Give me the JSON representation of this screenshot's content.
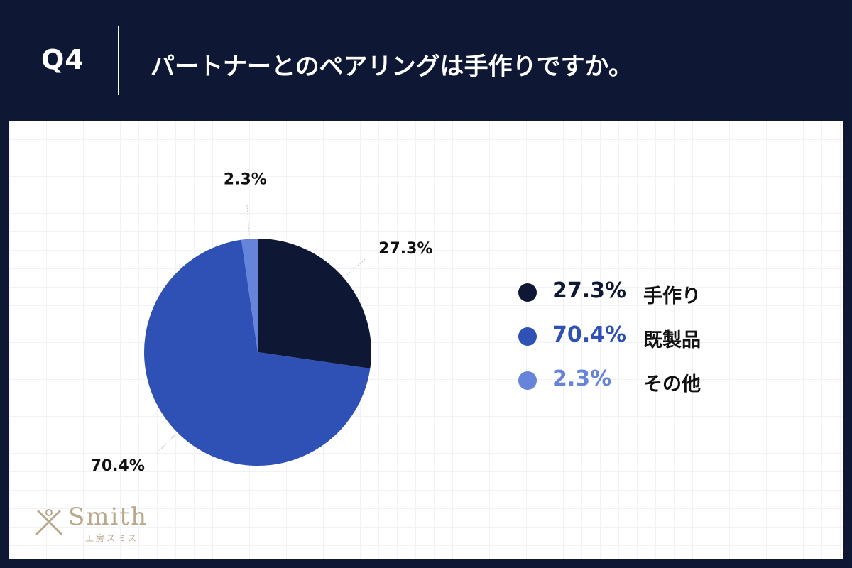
{
  "header": {
    "question_number": "Q4",
    "question_text": "パートナーとのペアリングは手作りですか。"
  },
  "chart_data": {
    "type": "pie",
    "slices": [
      {
        "label": "手作り",
        "value": 27.3,
        "display": "27.3%",
        "color": "#0e1834"
      },
      {
        "label": "既製品",
        "value": 70.4,
        "display": "70.4%",
        "color": "#2f51b6"
      },
      {
        "label": "その他",
        "value": 2.3,
        "display": "2.3%",
        "color": "#6784db"
      }
    ],
    "start_angle_deg": 0,
    "direction": "clockwise",
    "legend_position": "right"
  },
  "logo": {
    "wordmark": "Smith",
    "subtitle": "工房スミス"
  }
}
